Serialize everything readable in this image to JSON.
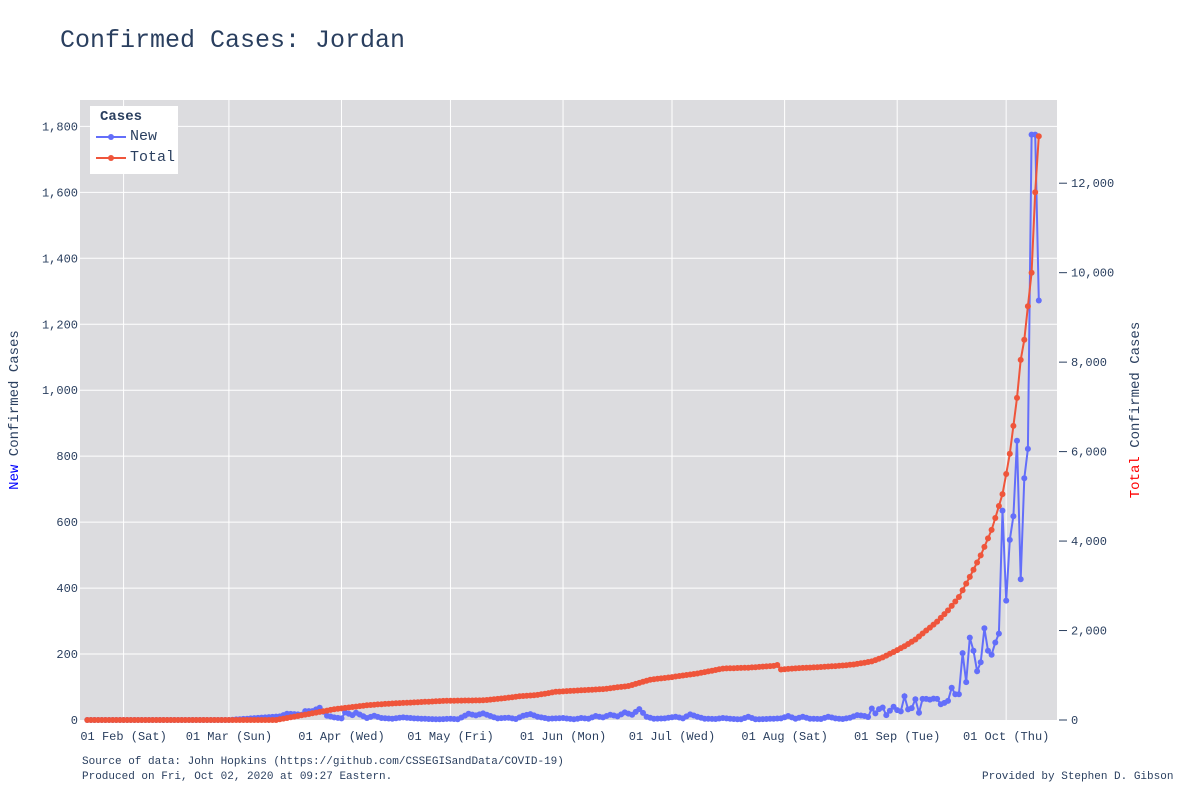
{
  "title": "Confirmed Cases: Jordan",
  "footer": {
    "source": "Source of data: John Hopkins (https://github.com/CSSEGISandData/COVID-19)",
    "produced": "Produced on Fri, Oct 02, 2020 at 09:27 Eastern.",
    "provided": "Provided by Stephen D. Gibson"
  },
  "colors": {
    "new": "#636efa",
    "total": "#ef553b",
    "plot_bg": "#dcdcdf",
    "grid": "#ffffff",
    "text": "#2a3f5f"
  },
  "legend": {
    "title": "Cases",
    "items": [
      "New",
      "Total"
    ],
    "position": "top-left"
  },
  "chart_data": {
    "type": "line",
    "markers": true,
    "grid": true,
    "xlabel": "",
    "ylabel_left": {
      "prefix": "New",
      "rest": " Confirmed Cases"
    },
    "ylabel_right": {
      "prefix": "Total",
      "rest": " Confirmed Cases"
    },
    "x_range": [
      "2020-01-20",
      "2020-10-15"
    ],
    "x_ticks": [
      {
        "date": "2020-02-01",
        "label": "01 Feb (Sat)"
      },
      {
        "date": "2020-03-01",
        "label": "01 Mar (Sun)"
      },
      {
        "date": "2020-04-01",
        "label": "01 Apr (Wed)"
      },
      {
        "date": "2020-05-01",
        "label": "01 May (Fri)"
      },
      {
        "date": "2020-06-01",
        "label": "01 Jun (Mon)"
      },
      {
        "date": "2020-07-01",
        "label": "01 Jul (Wed)"
      },
      {
        "date": "2020-08-01",
        "label": "01 Aug (Sat)"
      },
      {
        "date": "2020-09-01",
        "label": "01 Sep (Tue)"
      },
      {
        "date": "2020-10-01",
        "label": "01 Oct (Thu)"
      }
    ],
    "y_left": {
      "range": [
        0,
        1880
      ],
      "ticks": [
        0,
        200,
        400,
        600,
        800,
        1000,
        1200,
        1400,
        1600,
        1800
      ],
      "tick_labels": [
        "0",
        "200",
        "400",
        "600",
        "800",
        "1,000",
        "1,200",
        "1,400",
        "1,600",
        "1,800"
      ]
    },
    "y_right": {
      "range": [
        0,
        13860
      ],
      "ticks": [
        0,
        2000,
        4000,
        6000,
        8000,
        10000,
        12000
      ],
      "tick_labels": [
        "0",
        "2,000",
        "4,000",
        "6,000",
        "8,000",
        "10,000",
        "12,000"
      ]
    },
    "series": [
      {
        "name": "New",
        "axis": "left",
        "points": [
          [
            "2020-01-22",
            0
          ],
          [
            "2020-02-01",
            0
          ],
          [
            "2020-02-15",
            0
          ],
          [
            "2020-03-01",
            0
          ],
          [
            "2020-03-02",
            1
          ],
          [
            "2020-03-15",
            11
          ],
          [
            "2020-03-17",
            19
          ],
          [
            "2020-03-19",
            18
          ],
          [
            "2020-03-21",
            16
          ],
          [
            "2020-03-22",
            27
          ],
          [
            "2020-03-24",
            27
          ],
          [
            "2020-03-26",
            37
          ],
          [
            "2020-03-28",
            13
          ],
          [
            "2020-03-30",
            8
          ],
          [
            "2020-04-01",
            5
          ],
          [
            "2020-04-02",
            23
          ],
          [
            "2020-04-04",
            15
          ],
          [
            "2020-04-05",
            22
          ],
          [
            "2020-04-08",
            6
          ],
          [
            "2020-04-10",
            13
          ],
          [
            "2020-04-12",
            6
          ],
          [
            "2020-04-15",
            4
          ],
          [
            "2020-04-18",
            8
          ],
          [
            "2020-04-21",
            5
          ],
          [
            "2020-04-25",
            3
          ],
          [
            "2020-04-28",
            2
          ],
          [
            "2020-05-01",
            4
          ],
          [
            "2020-05-03",
            2
          ],
          [
            "2020-05-06",
            19
          ],
          [
            "2020-05-08",
            14
          ],
          [
            "2020-05-10",
            20
          ],
          [
            "2020-05-12",
            12
          ],
          [
            "2020-05-14",
            5
          ],
          [
            "2020-05-17",
            7
          ],
          [
            "2020-05-19",
            3
          ],
          [
            "2020-05-21",
            13
          ],
          [
            "2020-05-23",
            18
          ],
          [
            "2020-05-25",
            10
          ],
          [
            "2020-05-28",
            4
          ],
          [
            "2020-06-01",
            6
          ],
          [
            "2020-06-04",
            2
          ],
          [
            "2020-06-06",
            6
          ],
          [
            "2020-06-08",
            4
          ],
          [
            "2020-06-10",
            12
          ],
          [
            "2020-06-12",
            8
          ],
          [
            "2020-06-14",
            16
          ],
          [
            "2020-06-16",
            11
          ],
          [
            "2020-06-18",
            23
          ],
          [
            "2020-06-20",
            16
          ],
          [
            "2020-06-22",
            33
          ],
          [
            "2020-06-24",
            10
          ],
          [
            "2020-06-26",
            4
          ],
          [
            "2020-06-29",
            5
          ],
          [
            "2020-07-02",
            10
          ],
          [
            "2020-07-04",
            5
          ],
          [
            "2020-07-06",
            17
          ],
          [
            "2020-07-08",
            10
          ],
          [
            "2020-07-10",
            4
          ],
          [
            "2020-07-13",
            3
          ],
          [
            "2020-07-15",
            6
          ],
          [
            "2020-07-18",
            3
          ],
          [
            "2020-07-20",
            2
          ],
          [
            "2020-07-22",
            10
          ],
          [
            "2020-07-24",
            2
          ],
          [
            "2020-07-27",
            3
          ],
          [
            "2020-07-31",
            5
          ],
          [
            "2020-08-02",
            12
          ],
          [
            "2020-08-04",
            4
          ],
          [
            "2020-08-06",
            10
          ],
          [
            "2020-08-08",
            4
          ],
          [
            "2020-08-11",
            3
          ],
          [
            "2020-08-13",
            10
          ],
          [
            "2020-08-15",
            5
          ],
          [
            "2020-08-17",
            3
          ],
          [
            "2020-08-19",
            7
          ],
          [
            "2020-08-21",
            15
          ],
          [
            "2020-08-23",
            12
          ],
          [
            "2020-08-24",
            9
          ],
          [
            "2020-08-25",
            35
          ],
          [
            "2020-08-26",
            20
          ],
          [
            "2020-08-27",
            33
          ],
          [
            "2020-08-28",
            38
          ],
          [
            "2020-08-29",
            15
          ],
          [
            "2020-08-30",
            28
          ],
          [
            "2020-08-31",
            40
          ],
          [
            "2020-09-01",
            30
          ],
          [
            "2020-09-02",
            26
          ],
          [
            "2020-09-03",
            72
          ],
          [
            "2020-09-04",
            32
          ],
          [
            "2020-09-05",
            36
          ],
          [
            "2020-09-06",
            63
          ],
          [
            "2020-09-07",
            22
          ],
          [
            "2020-09-08",
            64
          ],
          [
            "2020-09-09",
            64
          ],
          [
            "2020-09-10",
            62
          ],
          [
            "2020-09-11",
            65
          ],
          [
            "2020-09-12",
            64
          ],
          [
            "2020-09-13",
            48
          ],
          [
            "2020-09-14",
            52
          ],
          [
            "2020-09-15",
            58
          ],
          [
            "2020-09-16",
            98
          ],
          [
            "2020-09-17",
            78
          ],
          [
            "2020-09-18",
            78
          ],
          [
            "2020-09-19",
            203
          ],
          [
            "2020-09-20",
            115
          ],
          [
            "2020-09-21",
            250
          ],
          [
            "2020-09-22",
            210
          ],
          [
            "2020-09-23",
            148
          ],
          [
            "2020-09-24",
            175
          ],
          [
            "2020-09-25",
            278
          ],
          [
            "2020-09-26",
            210
          ],
          [
            "2020-09-27",
            198
          ],
          [
            "2020-09-28",
            235
          ],
          [
            "2020-09-29",
            262
          ],
          [
            "2020-09-30",
            635
          ],
          [
            "2020-10-01",
            362
          ],
          [
            "2020-10-02",
            546
          ],
          [
            "2020-10-03",
            618
          ],
          [
            "2020-10-04",
            847
          ],
          [
            "2020-10-05",
            427
          ],
          [
            "2020-10-06",
            733
          ],
          [
            "2020-10-07",
            822
          ],
          [
            "2020-10-08",
            1775
          ],
          [
            "2020-10-09",
            1775
          ],
          [
            "2020-10-10",
            1272
          ]
        ]
      },
      {
        "name": "Total",
        "axis": "right",
        "points": [
          [
            "2020-01-22",
            0
          ],
          [
            "2020-02-01",
            0
          ],
          [
            "2020-02-15",
            0
          ],
          [
            "2020-03-01",
            0
          ],
          [
            "2020-03-02",
            1
          ],
          [
            "2020-03-14",
            1
          ],
          [
            "2020-03-18",
            60
          ],
          [
            "2020-03-22",
            120
          ],
          [
            "2020-03-26",
            180
          ],
          [
            "2020-03-30",
            240
          ],
          [
            "2020-04-03",
            280
          ],
          [
            "2020-04-08",
            330
          ],
          [
            "2020-04-13",
            360
          ],
          [
            "2020-04-20",
            390
          ],
          [
            "2020-04-30",
            430
          ],
          [
            "2020-05-10",
            440
          ],
          [
            "2020-05-15",
            480
          ],
          [
            "2020-05-20",
            530
          ],
          [
            "2020-05-25",
            560
          ],
          [
            "2020-05-30",
            630
          ],
          [
            "2020-06-05",
            660
          ],
          [
            "2020-06-12",
            690
          ],
          [
            "2020-06-19",
            760
          ],
          [
            "2020-06-25",
            900
          ],
          [
            "2020-07-01",
            960
          ],
          [
            "2020-07-08",
            1040
          ],
          [
            "2020-07-15",
            1150
          ],
          [
            "2020-07-22",
            1170
          ],
          [
            "2020-07-29",
            1210
          ],
          [
            "2020-07-30",
            1230
          ],
          [
            "2020-07-31",
            1130
          ],
          [
            "2020-08-05",
            1160
          ],
          [
            "2020-08-10",
            1180
          ],
          [
            "2020-08-15",
            1205
          ],
          [
            "2020-08-20",
            1240
          ],
          [
            "2020-08-25",
            1310
          ],
          [
            "2020-08-28",
            1400
          ],
          [
            "2020-08-31",
            1520
          ],
          [
            "2020-09-03",
            1650
          ],
          [
            "2020-09-06",
            1800
          ],
          [
            "2020-09-09",
            2000
          ],
          [
            "2020-09-12",
            2200
          ],
          [
            "2020-09-15",
            2450
          ],
          [
            "2020-09-18",
            2750
          ],
          [
            "2020-09-21",
            3200
          ],
          [
            "2020-09-24",
            3680
          ],
          [
            "2020-09-27",
            4250
          ],
          [
            "2020-09-30",
            5050
          ],
          [
            "2020-10-02",
            5950
          ],
          [
            "2020-10-04",
            7200
          ],
          [
            "2020-10-05",
            8050
          ],
          [
            "2020-10-06",
            8500
          ],
          [
            "2020-10-07",
            9250
          ],
          [
            "2020-10-08",
            10000
          ],
          [
            "2020-10-09",
            11800
          ],
          [
            "2020-10-10",
            13050
          ]
        ]
      }
    ]
  }
}
